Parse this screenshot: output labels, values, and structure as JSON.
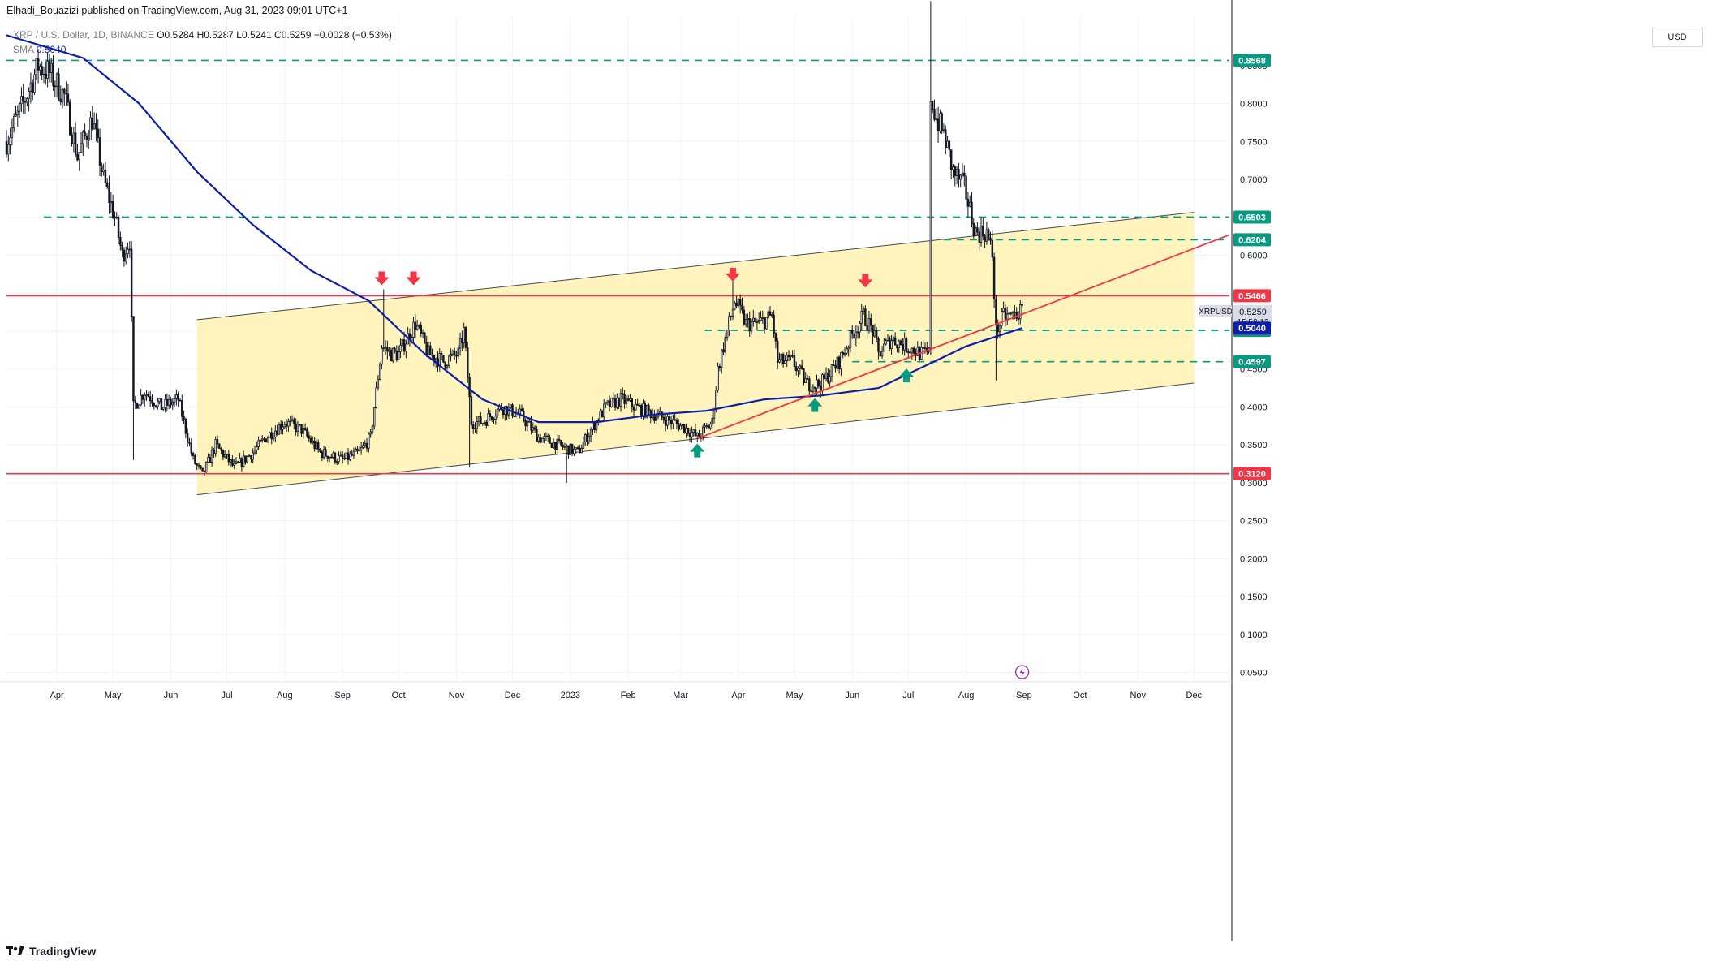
{
  "header": {
    "text": "Elhadi_Bouazizi published on TradingView.com, Aug 31, 2023 09:01 UTC+1"
  },
  "legend": {
    "symbol": "XRP / U.S. Dollar, 1D, BINANCE",
    "open_label": "O",
    "open": "0.5284",
    "high_label": "H",
    "high": "0.5287",
    "low_label": "L",
    "low": "0.5241",
    "close_label": "C",
    "close": "0.5259",
    "change": "−0.0028 (−0.53%)",
    "sma_label": "SMA",
    "sma_value": "0.5040"
  },
  "currency_button": "USD",
  "footer": {
    "brand": "TradingView"
  },
  "colors": {
    "teal": "#089981",
    "red": "#f23645",
    "sma": "#0d1fa8",
    "channel_fill": "#fff2b2",
    "candle": "#131722"
  },
  "chart_data": {
    "type": "candlestick",
    "symbol": "XRPUSD",
    "xlim": [
      "2022-03-05",
      "2023-12-20"
    ],
    "ylim": [
      0.04,
      0.915
    ],
    "y_ticks": [
      "0.8500",
      "0.8000",
      "0.7500",
      "0.7000",
      "0.6500",
      "0.6000",
      "0.5500",
      "0.5000",
      "0.4500",
      "0.4000",
      "0.3500",
      "0.3000",
      "0.2500",
      "0.2000",
      "0.1500",
      "0.1000",
      "0.0500"
    ],
    "x_ticks": [
      {
        "date": "2022-04-01",
        "label": "Apr"
      },
      {
        "date": "2022-05-01",
        "label": "May"
      },
      {
        "date": "2022-06-01",
        "label": "Jun"
      },
      {
        "date": "2022-07-01",
        "label": "Jul"
      },
      {
        "date": "2022-08-01",
        "label": "Aug"
      },
      {
        "date": "2022-09-01",
        "label": "Sep"
      },
      {
        "date": "2022-10-01",
        "label": "Oct"
      },
      {
        "date": "2022-11-01",
        "label": "Nov"
      },
      {
        "date": "2022-12-01",
        "label": "Dec"
      },
      {
        "date": "2023-01-01",
        "label": "2023"
      },
      {
        "date": "2023-02-01",
        "label": "Feb"
      },
      {
        "date": "2023-03-01",
        "label": "Mar"
      },
      {
        "date": "2023-04-01",
        "label": "Apr"
      },
      {
        "date": "2023-05-01",
        "label": "May"
      },
      {
        "date": "2023-06-01",
        "label": "Jun"
      },
      {
        "date": "2023-07-01",
        "label": "Jul"
      },
      {
        "date": "2023-08-01",
        "label": "Aug"
      },
      {
        "date": "2023-09-01",
        "label": "Sep"
      },
      {
        "date": "2023-10-01",
        "label": "Oct"
      },
      {
        "date": "2023-11-01",
        "label": "Nov"
      },
      {
        "date": "2023-12-01",
        "label": "Dec"
      }
    ],
    "price_path": [
      [
        "2022-03-05",
        0.75
      ],
      [
        "2022-03-14",
        0.8
      ],
      [
        "2022-03-22",
        0.85
      ],
      [
        "2022-03-28",
        0.84
      ],
      [
        "2022-04-05",
        0.81
      ],
      [
        "2022-04-12",
        0.73
      ],
      [
        "2022-04-20",
        0.78
      ],
      [
        "2022-04-26",
        0.7
      ],
      [
        "2022-05-02",
        0.65
      ],
      [
        "2022-05-06",
        0.6
      ],
      [
        "2022-05-10",
        0.62
      ],
      [
        "2022-05-12",
        0.4
      ],
      [
        "2022-05-18",
        0.42
      ],
      [
        "2022-05-27",
        0.4
      ],
      [
        "2022-06-05",
        0.41
      ],
      [
        "2022-06-13",
        0.33
      ],
      [
        "2022-06-18",
        0.31
      ],
      [
        "2022-06-25",
        0.35
      ],
      [
        "2022-07-05",
        0.32
      ],
      [
        "2022-07-15",
        0.34
      ],
      [
        "2022-07-22",
        0.36
      ],
      [
        "2022-08-01",
        0.38
      ],
      [
        "2022-08-10",
        0.37
      ],
      [
        "2022-08-20",
        0.34
      ],
      [
        "2022-09-01",
        0.33
      ],
      [
        "2022-09-10",
        0.34
      ],
      [
        "2022-09-16",
        0.36
      ],
      [
        "2022-09-22",
        0.48
      ],
      [
        "2022-09-27",
        0.47
      ],
      [
        "2022-10-01",
        0.47
      ],
      [
        "2022-10-10",
        0.51
      ],
      [
        "2022-10-17",
        0.47
      ],
      [
        "2022-10-25",
        0.46
      ],
      [
        "2022-11-02",
        0.47
      ],
      [
        "2022-11-05",
        0.5
      ],
      [
        "2022-11-09",
        0.38
      ],
      [
        "2022-11-15",
        0.38
      ],
      [
        "2022-11-25",
        0.4
      ],
      [
        "2022-12-05",
        0.39
      ],
      [
        "2022-12-15",
        0.36
      ],
      [
        "2022-12-25",
        0.35
      ],
      [
        "2023-01-05",
        0.34
      ],
      [
        "2023-01-12",
        0.37
      ],
      [
        "2023-01-20",
        0.4
      ],
      [
        "2023-01-28",
        0.41
      ],
      [
        "2023-02-05",
        0.4
      ],
      [
        "2023-02-15",
        0.39
      ],
      [
        "2023-02-25",
        0.38
      ],
      [
        "2023-03-05",
        0.37
      ],
      [
        "2023-03-10",
        0.36
      ],
      [
        "2023-03-18",
        0.38
      ],
      [
        "2023-03-21",
        0.45
      ],
      [
        "2023-03-27",
        0.51
      ],
      [
        "2023-03-30",
        0.54
      ],
      [
        "2023-04-05",
        0.51
      ],
      [
        "2023-04-12",
        0.51
      ],
      [
        "2023-04-19",
        0.52
      ],
      [
        "2023-04-22",
        0.46
      ],
      [
        "2023-04-30",
        0.46
      ],
      [
        "2023-05-08",
        0.43
      ],
      [
        "2023-05-15",
        0.43
      ],
      [
        "2023-05-25",
        0.46
      ],
      [
        "2023-06-02",
        0.5
      ],
      [
        "2023-06-07",
        0.52
      ],
      [
        "2023-06-12",
        0.5
      ],
      [
        "2023-06-15",
        0.47
      ],
      [
        "2023-06-22",
        0.49
      ],
      [
        "2023-06-30",
        0.48
      ],
      [
        "2023-07-08",
        0.47
      ],
      [
        "2023-07-12",
        0.47
      ],
      [
        "2023-07-13",
        0.81
      ],
      [
        "2023-07-16",
        0.78
      ],
      [
        "2023-07-20",
        0.76
      ],
      [
        "2023-07-25",
        0.71
      ],
      [
        "2023-07-31",
        0.69
      ],
      [
        "2023-08-06",
        0.63
      ],
      [
        "2023-08-12",
        0.63
      ],
      [
        "2023-08-15",
        0.6
      ],
      [
        "2023-08-17",
        0.5
      ],
      [
        "2023-08-21",
        0.52
      ],
      [
        "2023-08-25",
        0.52
      ],
      [
        "2023-08-31",
        0.526
      ]
    ],
    "sma_path": [
      [
        "2022-03-05",
        0.89
      ],
      [
        "2022-04-15",
        0.86
      ],
      [
        "2022-05-15",
        0.8
      ],
      [
        "2022-06-15",
        0.71
      ],
      [
        "2022-07-15",
        0.64
      ],
      [
        "2022-08-15",
        0.58
      ],
      [
        "2022-09-15",
        0.54
      ],
      [
        "2022-10-15",
        0.47
      ],
      [
        "2022-11-15",
        0.41
      ],
      [
        "2022-12-15",
        0.38
      ],
      [
        "2023-01-15",
        0.38
      ],
      [
        "2023-02-15",
        0.39
      ],
      [
        "2023-03-15",
        0.395
      ],
      [
        "2023-04-15",
        0.41
      ],
      [
        "2023-05-15",
        0.415
      ],
      [
        "2023-06-15",
        0.425
      ],
      [
        "2023-07-15",
        0.46
      ],
      [
        "2023-08-01",
        0.48
      ],
      [
        "2023-08-31",
        0.504
      ]
    ],
    "horizontal_levels": [
      {
        "label": "0.8568",
        "price": 0.8568,
        "style": "dashed",
        "color": "teal",
        "from": "2022-03-05"
      },
      {
        "label": "0.6503",
        "price": 0.6503,
        "style": "dashed",
        "color": "teal",
        "from": "2022-03-25"
      },
      {
        "label": "0.6204",
        "price": 0.6204,
        "style": "dashed",
        "color": "teal",
        "from": "2023-07-20"
      },
      {
        "label": "0.5466",
        "price": 0.5466,
        "style": "solid",
        "color": "red",
        "from": "2022-03-05"
      },
      {
        "label": "0.5009",
        "price": 0.5009,
        "style": "dashed",
        "color": "teal",
        "from": "2023-03-14"
      },
      {
        "label": "0.4597",
        "price": 0.4597,
        "style": "dashed",
        "color": "teal",
        "from": "2023-06-01"
      },
      {
        "label": "0.3120",
        "price": 0.312,
        "style": "solid",
        "color": "red",
        "from": "2022-03-05"
      }
    ],
    "channel": {
      "upper": [
        [
          "2022-06-15",
          0.515
        ],
        [
          "2023-12-01",
          0.6565
        ]
      ],
      "lower": [
        [
          "2022-06-15",
          0.2843
        ],
        [
          "2023-12-01",
          0.4315
        ]
      ]
    },
    "trendline": [
      [
        "2023-03-10",
        0.3584
      ],
      [
        "2023-12-20",
        0.6268
      ]
    ],
    "arrows": [
      {
        "date": "2022-09-22",
        "price": 0.57,
        "dir": "down"
      },
      {
        "date": "2022-10-09",
        "price": 0.57,
        "dir": "down"
      },
      {
        "date": "2023-03-29",
        "price": 0.575,
        "dir": "down"
      },
      {
        "date": "2023-06-08",
        "price": 0.567,
        "dir": "down"
      },
      {
        "date": "2023-03-10",
        "price": 0.342,
        "dir": "up"
      },
      {
        "date": "2023-05-12",
        "price": 0.402,
        "dir": "up"
      },
      {
        "date": "2023-06-30",
        "price": 0.441,
        "dir": "up"
      }
    ],
    "price_labels": [
      {
        "text": "0.5259",
        "price": 0.5259,
        "type": "last"
      },
      {
        "text": "15:58:12",
        "type": "countdown"
      },
      {
        "text": "XRPUSD",
        "type": "symbol-tag"
      },
      {
        "text": "0.5040",
        "price": 0.504,
        "type": "sma"
      }
    ]
  }
}
